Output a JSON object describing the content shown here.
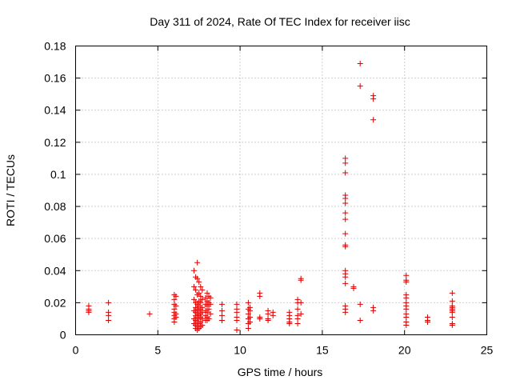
{
  "chart_data": {
    "type": "scatter",
    "title": "Day 311 of 2024, Rate Of TEC Index for receiver iisc",
    "xlabel": "GPS time / hours",
    "ylabel": "ROTI / TECUs",
    "xlim": [
      0,
      25
    ],
    "ylim": [
      0,
      0.18
    ],
    "xticks": [
      0,
      5,
      10,
      15,
      20,
      25
    ],
    "xtick_labels": [
      "0",
      "5",
      "10",
      "15",
      "20",
      "25"
    ],
    "yticks": [
      0,
      0.02,
      0.04,
      0.06,
      0.08,
      0.1,
      0.12,
      0.14,
      0.16,
      0.18
    ],
    "ytick_labels": [
      "0",
      "0.02",
      "0.04",
      "0.06",
      "0.08",
      "0.1",
      "0.12",
      "0.14",
      "0.16",
      "0.18"
    ],
    "grid": true,
    "marker": "+",
    "color": "#e00000",
    "series": [
      {
        "name": "ROTI",
        "points": [
          [
            0.8,
            0.014
          ],
          [
            0.8,
            0.015
          ],
          [
            0.8,
            0.016
          ],
          [
            0.8,
            0.018
          ],
          [
            2.0,
            0.02
          ],
          [
            2.0,
            0.014
          ],
          [
            2.0,
            0.012
          ],
          [
            2.0,
            0.009
          ],
          [
            4.5,
            0.013
          ],
          [
            6.0,
            0.025
          ],
          [
            6.0,
            0.022
          ],
          [
            6.0,
            0.019
          ],
          [
            6.0,
            0.016
          ],
          [
            6.0,
            0.014
          ],
          [
            6.0,
            0.012
          ],
          [
            6.0,
            0.01
          ],
          [
            6.0,
            0.008
          ],
          [
            6.1,
            0.024
          ],
          [
            6.1,
            0.018
          ],
          [
            6.1,
            0.013
          ],
          [
            6.1,
            0.011
          ],
          [
            7.2,
            0.04
          ],
          [
            7.2,
            0.03
          ],
          [
            7.2,
            0.022
          ],
          [
            7.2,
            0.015
          ],
          [
            7.2,
            0.01
          ],
          [
            7.2,
            0.007
          ],
          [
            7.3,
            0.036
          ],
          [
            7.3,
            0.028
          ],
          [
            7.3,
            0.02
          ],
          [
            7.3,
            0.017
          ],
          [
            7.3,
            0.014
          ],
          [
            7.3,
            0.012
          ],
          [
            7.3,
            0.009
          ],
          [
            7.3,
            0.006
          ],
          [
            7.3,
            0.004
          ],
          [
            7.4,
            0.045
          ],
          [
            7.4,
            0.035
          ],
          [
            7.4,
            0.025
          ],
          [
            7.4,
            0.019
          ],
          [
            7.4,
            0.016
          ],
          [
            7.4,
            0.013
          ],
          [
            7.4,
            0.011
          ],
          [
            7.4,
            0.008
          ],
          [
            7.4,
            0.005
          ],
          [
            7.4,
            0.003
          ],
          [
            7.5,
            0.033
          ],
          [
            7.5,
            0.026
          ],
          [
            7.5,
            0.021
          ],
          [
            7.5,
            0.018
          ],
          [
            7.5,
            0.015
          ],
          [
            7.5,
            0.012
          ],
          [
            7.5,
            0.01
          ],
          [
            7.5,
            0.007
          ],
          [
            7.5,
            0.004
          ],
          [
            7.6,
            0.03
          ],
          [
            7.6,
            0.024
          ],
          [
            7.6,
            0.02
          ],
          [
            7.6,
            0.016
          ],
          [
            7.6,
            0.013
          ],
          [
            7.6,
            0.011
          ],
          [
            7.6,
            0.008
          ],
          [
            7.6,
            0.005
          ],
          [
            7.7,
            0.028
          ],
          [
            7.7,
            0.022
          ],
          [
            7.7,
            0.017
          ],
          [
            7.7,
            0.014
          ],
          [
            7.7,
            0.01
          ],
          [
            7.7,
            0.006
          ],
          [
            7.9,
            0.023
          ],
          [
            7.9,
            0.019
          ],
          [
            7.9,
            0.015
          ],
          [
            7.9,
            0.012
          ],
          [
            7.9,
            0.009
          ],
          [
            8.0,
            0.026
          ],
          [
            8.0,
            0.021
          ],
          [
            8.0,
            0.018
          ],
          [
            8.0,
            0.014
          ],
          [
            8.0,
            0.011
          ],
          [
            8.0,
            0.009
          ],
          [
            8.1,
            0.024
          ],
          [
            8.1,
            0.02
          ],
          [
            8.1,
            0.016
          ],
          [
            8.1,
            0.01
          ],
          [
            8.2,
            0.023
          ],
          [
            8.2,
            0.019
          ],
          [
            8.2,
            0.013
          ],
          [
            8.9,
            0.019
          ],
          [
            8.9,
            0.015
          ],
          [
            8.9,
            0.012
          ],
          [
            8.9,
            0.009
          ],
          [
            9.8,
            0.019
          ],
          [
            9.8,
            0.016
          ],
          [
            9.8,
            0.014
          ],
          [
            9.8,
            0.011
          ],
          [
            9.8,
            0.009
          ],
          [
            9.8,
            0.003
          ],
          [
            10.5,
            0.02
          ],
          [
            10.5,
            0.016
          ],
          [
            10.5,
            0.013
          ],
          [
            10.5,
            0.01
          ],
          [
            10.5,
            0.007
          ],
          [
            10.5,
            0.004
          ],
          [
            10.6,
            0.017
          ],
          [
            10.6,
            0.015
          ],
          [
            10.6,
            0.011
          ],
          [
            10.6,
            0.008
          ],
          [
            11.2,
            0.026
          ],
          [
            11.2,
            0.024
          ],
          [
            11.2,
            0.011
          ],
          [
            11.2,
            0.01
          ],
          [
            11.7,
            0.015
          ],
          [
            11.7,
            0.013
          ],
          [
            11.7,
            0.01
          ],
          [
            11.7,
            0.009
          ],
          [
            12.0,
            0.014
          ],
          [
            12.0,
            0.012
          ],
          [
            13.0,
            0.014
          ],
          [
            13.0,
            0.012
          ],
          [
            13.0,
            0.01
          ],
          [
            13.0,
            0.008
          ],
          [
            13.0,
            0.007
          ],
          [
            13.5,
            0.022
          ],
          [
            13.5,
            0.02
          ],
          [
            13.5,
            0.016
          ],
          [
            13.5,
            0.012
          ],
          [
            13.5,
            0.01
          ],
          [
            13.5,
            0.007
          ],
          [
            13.7,
            0.035
          ],
          [
            13.7,
            0.034
          ],
          [
            13.7,
            0.02
          ],
          [
            13.7,
            0.013
          ],
          [
            16.4,
            0.11
          ],
          [
            16.4,
            0.107
          ],
          [
            16.4,
            0.101
          ],
          [
            16.4,
            0.087
          ],
          [
            16.4,
            0.085
          ],
          [
            16.4,
            0.082
          ],
          [
            16.4,
            0.076
          ],
          [
            16.4,
            0.072
          ],
          [
            16.4,
            0.063
          ],
          [
            16.4,
            0.056
          ],
          [
            16.4,
            0.055
          ],
          [
            16.4,
            0.04
          ],
          [
            16.4,
            0.038
          ],
          [
            16.4,
            0.036
          ],
          [
            16.4,
            0.032
          ],
          [
            16.4,
            0.018
          ],
          [
            16.4,
            0.016
          ],
          [
            16.4,
            0.014
          ],
          [
            16.9,
            0.03
          ],
          [
            16.9,
            0.029
          ],
          [
            17.3,
            0.169
          ],
          [
            17.3,
            0.155
          ],
          [
            17.3,
            0.019
          ],
          [
            17.3,
            0.009
          ],
          [
            18.1,
            0.149
          ],
          [
            18.1,
            0.147
          ],
          [
            18.1,
            0.134
          ],
          [
            18.1,
            0.017
          ],
          [
            18.1,
            0.015
          ],
          [
            20.1,
            0.037
          ],
          [
            20.1,
            0.034
          ],
          [
            20.1,
            0.033
          ],
          [
            20.1,
            0.025
          ],
          [
            20.1,
            0.023
          ],
          [
            20.1,
            0.02
          ],
          [
            20.1,
            0.018
          ],
          [
            20.1,
            0.016
          ],
          [
            20.1,
            0.013
          ],
          [
            20.1,
            0.011
          ],
          [
            20.1,
            0.008
          ],
          [
            20.1,
            0.006
          ],
          [
            21.4,
            0.011
          ],
          [
            21.4,
            0.009
          ],
          [
            21.4,
            0.008
          ],
          [
            22.9,
            0.026
          ],
          [
            22.9,
            0.021
          ],
          [
            22.9,
            0.018
          ],
          [
            22.9,
            0.017
          ],
          [
            22.9,
            0.016
          ],
          [
            22.9,
            0.015
          ],
          [
            22.9,
            0.014
          ],
          [
            22.9,
            0.011
          ],
          [
            22.9,
            0.007
          ],
          [
            22.9,
            0.006
          ]
        ]
      }
    ]
  }
}
